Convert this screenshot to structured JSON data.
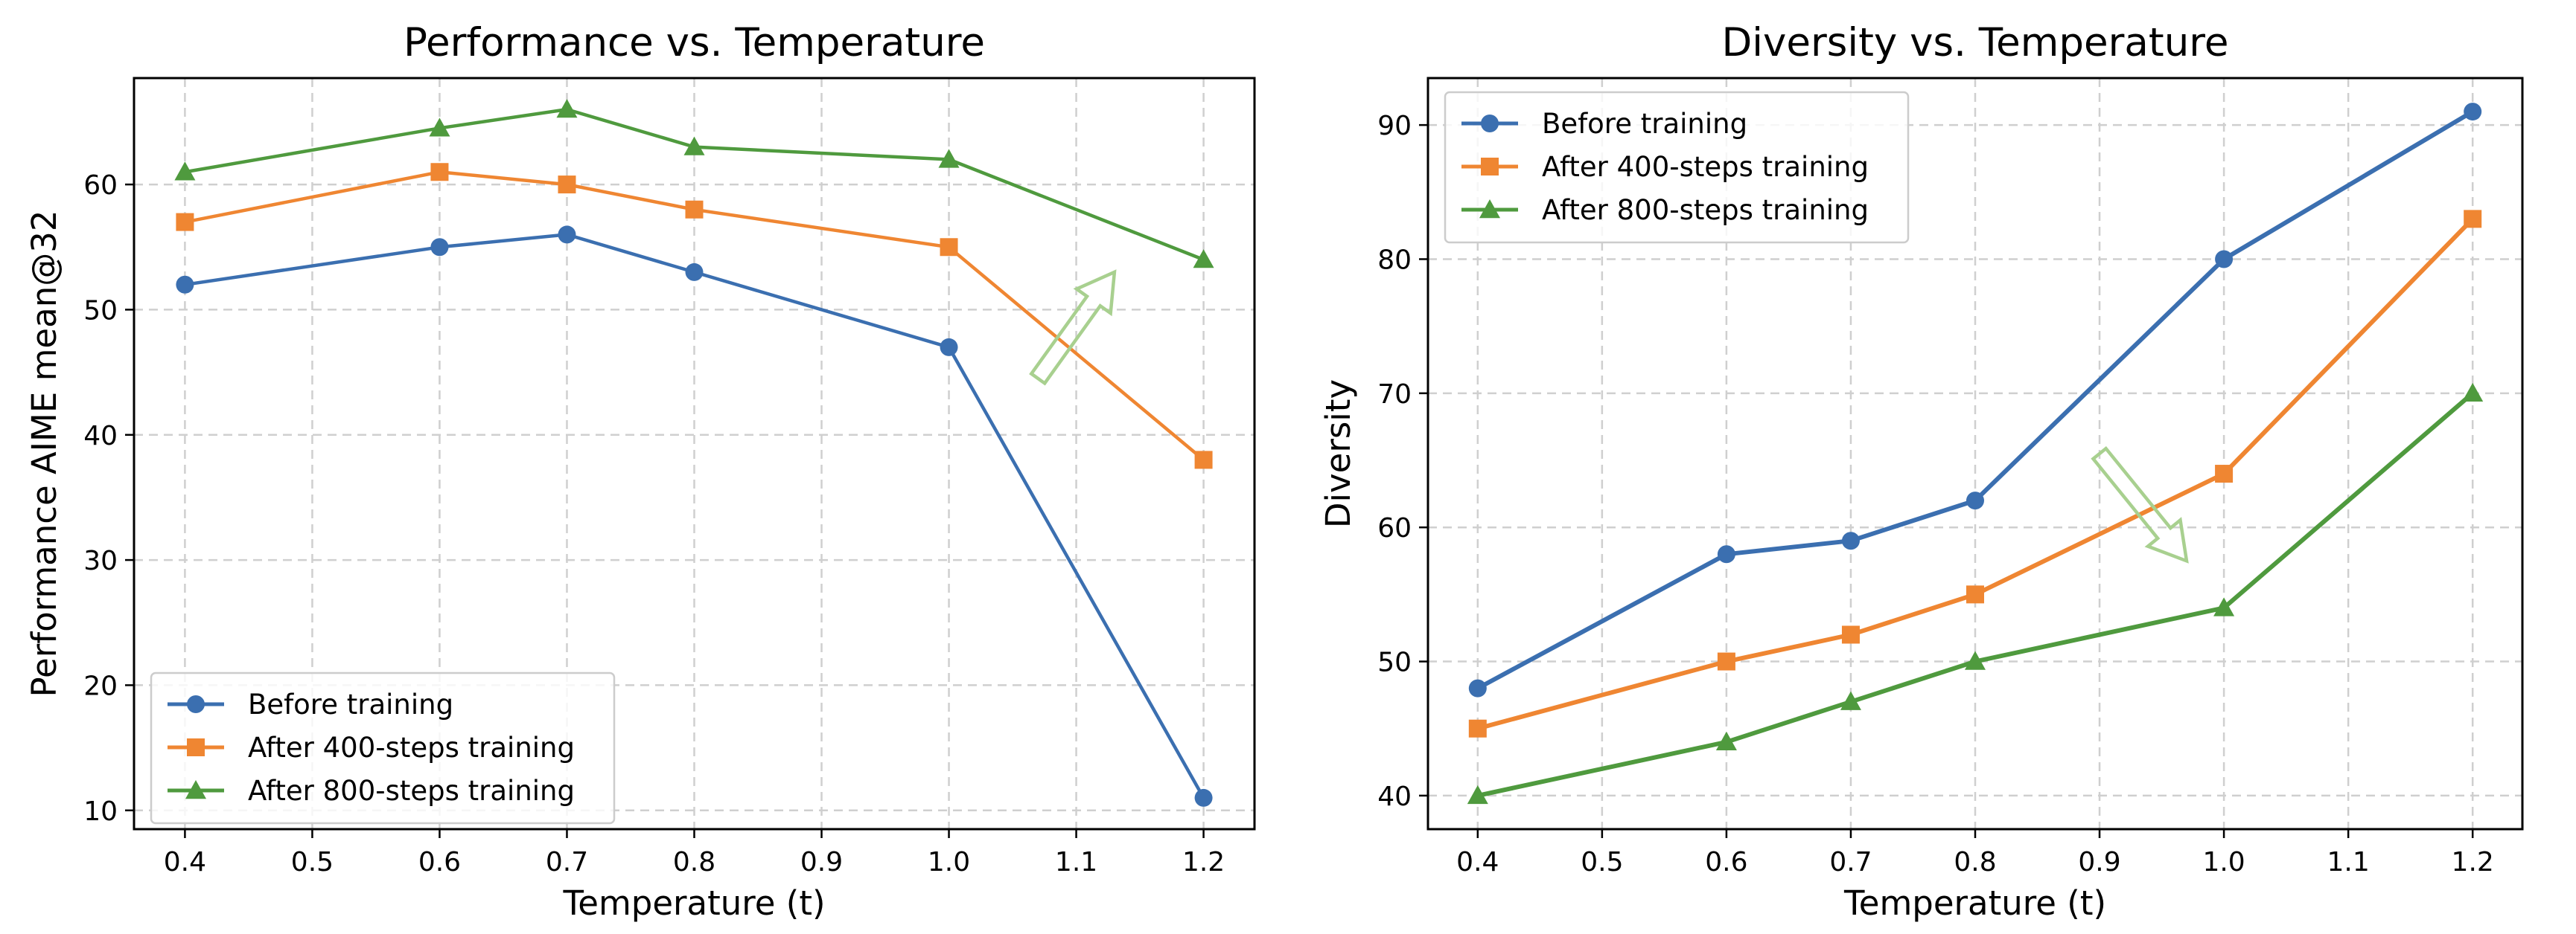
{
  "chart_data": [
    {
      "type": "line",
      "title": "Performance vs. Temperature",
      "xlabel": "Temperature (t)",
      "ylabel": "Performance AIME mean@32",
      "x": [
        0.4,
        0.6,
        0.7,
        0.8,
        1.0,
        1.2
      ],
      "xlim": [
        0.36,
        1.24
      ],
      "ylim": [
        8.5,
        68.5
      ],
      "xticks": [
        "0.4",
        "0.5",
        "0.6",
        "0.7",
        "0.8",
        "0.9",
        "1.0",
        "1.1",
        "1.2"
      ],
      "yticks": [
        "10",
        "20",
        "30",
        "40",
        "50",
        "60"
      ],
      "grid": true,
      "legend_position": "lower-left",
      "series": [
        {
          "name": "Before training",
          "values": [
            52,
            55,
            56,
            53,
            47,
            11
          ],
          "color": "#3b6fb0",
          "marker": "circle"
        },
        {
          "name": "After 400-steps training",
          "values": [
            57,
            61,
            60,
            58,
            55,
            38
          ],
          "color": "#ef8632",
          "marker": "square"
        },
        {
          "name": "After 800-steps training",
          "values": [
            61,
            64.5,
            66,
            63,
            62,
            54
          ],
          "color": "#4f9a3e",
          "marker": "triangle"
        }
      ],
      "annotation": {
        "type": "arrow",
        "direction": "up-right",
        "color": "#a8d08f",
        "from": [
          1.07,
          44.5
        ],
        "to": [
          1.13,
          53
        ]
      }
    },
    {
      "type": "line",
      "title": "Diversity vs. Temperature",
      "xlabel": "Temperature (t)",
      "ylabel": "Diversity",
      "x": [
        0.4,
        0.6,
        0.7,
        0.8,
        1.0,
        1.2
      ],
      "xlim": [
        0.36,
        1.24
      ],
      "ylim": [
        37.5,
        93.5
      ],
      "xticks": [
        "0.4",
        "0.5",
        "0.6",
        "0.7",
        "0.8",
        "0.9",
        "1.0",
        "1.1",
        "1.2"
      ],
      "yticks": [
        "40",
        "50",
        "60",
        "70",
        "80",
        "90"
      ],
      "grid": true,
      "legend_position": "upper-left",
      "series": [
        {
          "name": "Before training",
          "values": [
            48,
            58,
            59,
            62,
            80,
            91
          ],
          "color": "#3b6fb0",
          "marker": "circle"
        },
        {
          "name": "After 400-steps training",
          "values": [
            45,
            50,
            52,
            55,
            64,
            83
          ],
          "color": "#ef8632",
          "marker": "square"
        },
        {
          "name": "After 800-steps training",
          "values": [
            40,
            44,
            47,
            50,
            54,
            70
          ],
          "color": "#4f9a3e",
          "marker": "triangle"
        }
      ],
      "annotation": {
        "type": "arrow",
        "direction": "down-right",
        "color": "#a8d08f",
        "from": [
          0.9,
          65.5
        ],
        "to": [
          0.97,
          57.5
        ]
      }
    }
  ]
}
